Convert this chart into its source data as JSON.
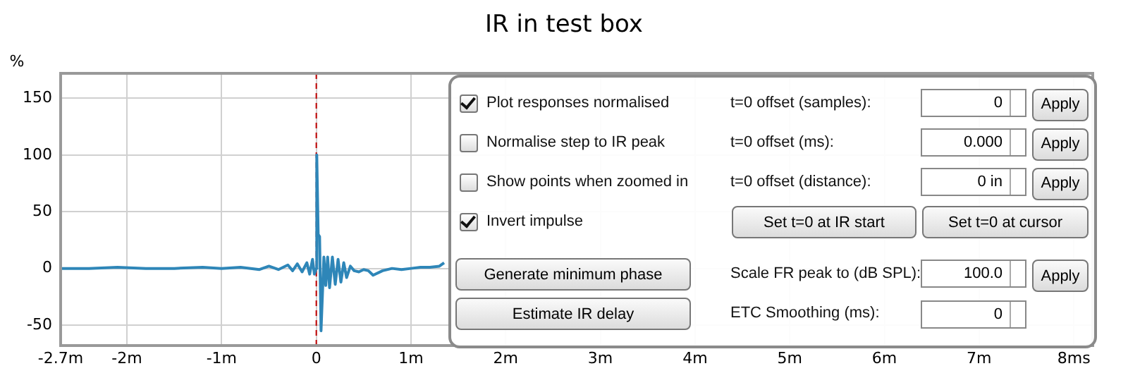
{
  "chart_data": {
    "type": "line",
    "title": "IR in test box",
    "ylabel": "%",
    "xlim": [
      -2.7,
      8.2
    ],
    "ylim": [
      -68,
      172
    ],
    "xticks": [
      {
        "value": -2.7,
        "label": "-2.7m"
      },
      {
        "value": -2,
        "label": "-2m"
      },
      {
        "value": -1,
        "label": "-1m"
      },
      0,
      {
        "value": 1,
        "label": "1m"
      },
      {
        "value": 2,
        "label": "2m"
      },
      {
        "value": 3,
        "label": "3m"
      },
      {
        "value": 4,
        "label": "4m"
      },
      {
        "value": 5,
        "label": "5m"
      },
      {
        "value": 6,
        "label": "6m"
      },
      {
        "value": 7,
        "label": "7m"
      },
      {
        "value": 8,
        "label": "8ms"
      }
    ],
    "yticks": [
      -50,
      0,
      50,
      100,
      150
    ],
    "grid": true,
    "legend": false,
    "marker": "none",
    "ref_lines": [
      {
        "axis": "x",
        "value": 0,
        "color": "#c00000",
        "line_style": "dashed"
      }
    ],
    "series": [
      {
        "color": "#2e86b8",
        "x": [
          -2.7,
          -2.4,
          -2.1,
          -1.8,
          -1.5,
          -1.2,
          -1.0,
          -0.8,
          -0.6,
          -0.5,
          -0.4,
          -0.3,
          -0.25,
          -0.2,
          -0.15,
          -0.1,
          -0.07,
          -0.04,
          -0.02,
          0,
          0.005,
          0.02,
          0.035,
          0.05,
          0.08,
          0.1,
          0.12,
          0.14,
          0.17,
          0.2,
          0.23,
          0.26,
          0.29,
          0.32,
          0.36,
          0.4,
          0.45,
          0.5,
          0.55,
          0.6,
          0.7,
          0.8,
          0.9,
          1.0,
          1.1,
          1.2,
          1.3,
          1.35
        ],
        "values": [
          0,
          0,
          1,
          0,
          0,
          1,
          0,
          1,
          -1,
          2,
          -1,
          3,
          -2,
          4,
          -3,
          5,
          -5,
          8,
          -5,
          0,
          100,
          30,
          28,
          -55,
          10,
          -15,
          10,
          -17,
          10,
          -14,
          8,
          -12,
          5,
          -8,
          2,
          -2,
          -3,
          -1,
          -2,
          -6,
          -2,
          0,
          -1,
          0,
          1,
          1,
          2,
          5
        ]
      }
    ],
    "annotations": [
      "Plot responses normalised",
      "Normalise step to IR peak",
      "Show points when zoomed in",
      "Invert impulse",
      "Generate minimum phase",
      "Estimate IR delay",
      "t=0 offset (samples):",
      "t=0 offset (ms):",
      "t=0 offset (distance):",
      "Set t=0 at IR start",
      "Set t=0 at cursor",
      "Scale FR peak to (dB SPL):",
      "ETC Smoothing (ms):",
      "0",
      "0.000",
      "0 in",
      "100.0",
      "0",
      "Apply",
      "Apply",
      "Apply",
      "Apply"
    ]
  }
}
